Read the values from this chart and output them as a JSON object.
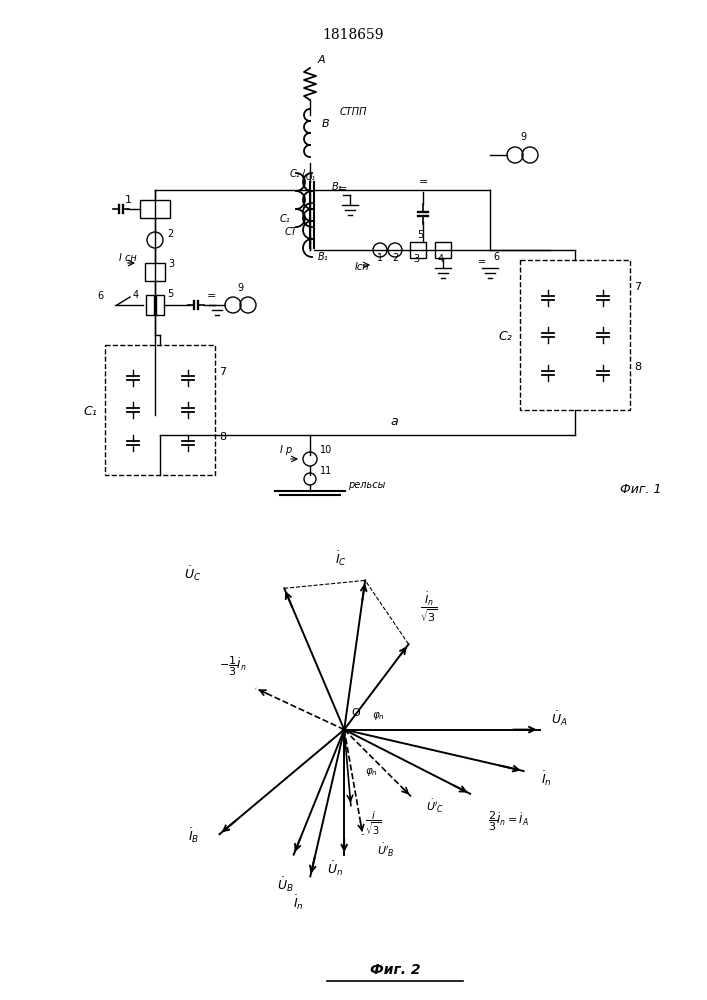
{
  "title": "1818659",
  "background_color": "#ffffff",
  "fig1_label": "Фиг. 1",
  "fig2_label": "Фиг. 2",
  "fig2_underline": true
}
